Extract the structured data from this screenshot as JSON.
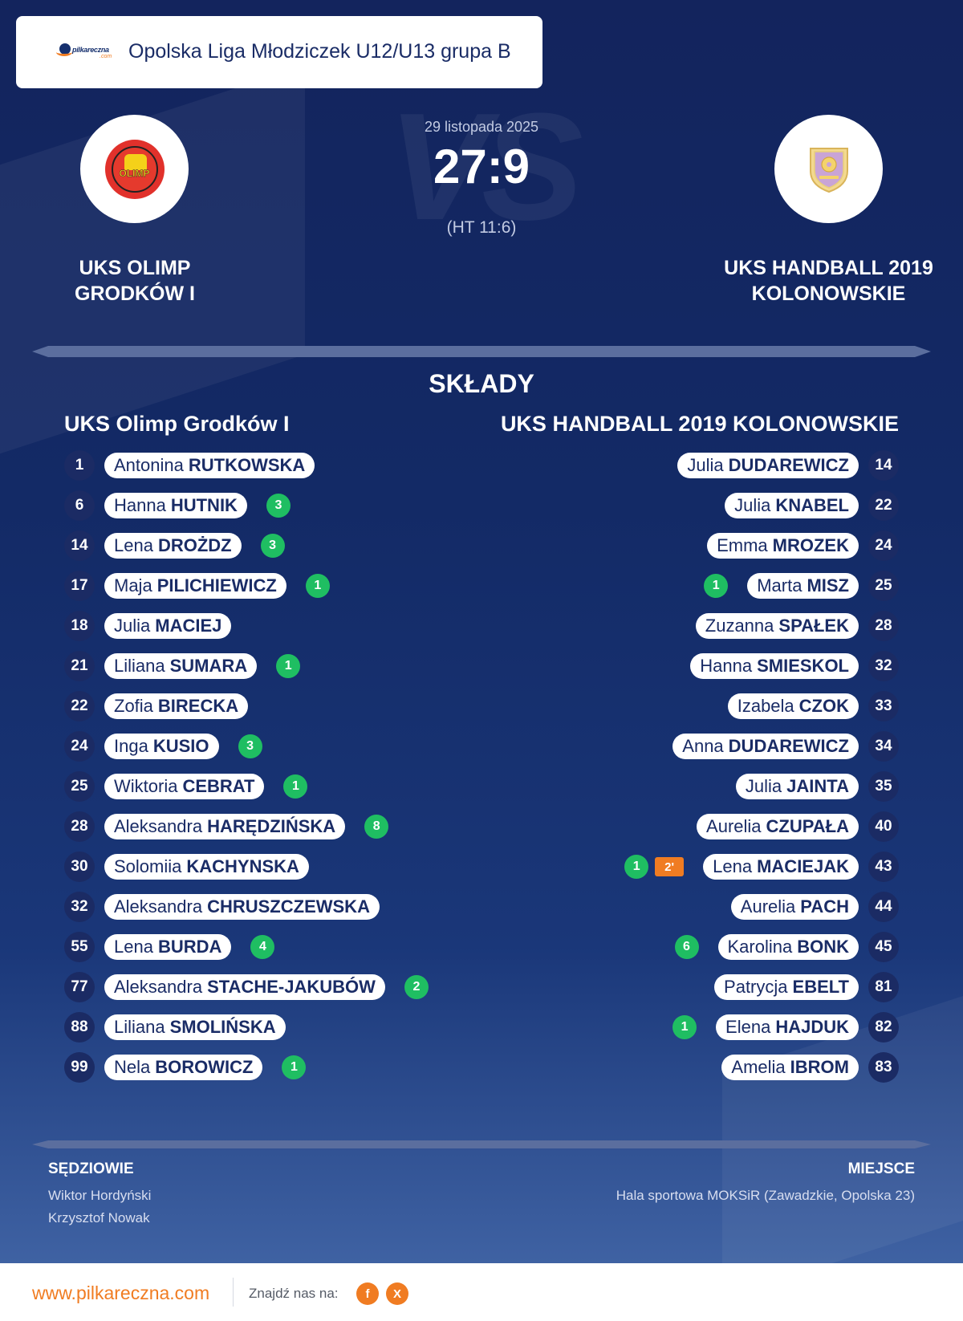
{
  "header": {
    "brand": "pilkareczna",
    "brand_suffix": ".com",
    "league": "Opolska Liga Młodziczek U12/U13 grupa B"
  },
  "match": {
    "date": "29 listopada 2025",
    "score": "27:9",
    "halftime": "(HT 11:6)",
    "vs": "VS",
    "home_name": "UKS OLIMP GRODKÓW I",
    "away_name": "UKS HANDBALL 2019 KOLONOWSKIE",
    "home_logo_text": "OLIMP"
  },
  "lineups": {
    "title": "SKŁADY",
    "home_title": "UKS Olimp Grodków I",
    "away_title": "UKS HANDBALL 2019 KOLONOWSKIE",
    "home": [
      {
        "num": "1",
        "first": "Antonina",
        "last": "RUTKOWSKA",
        "goals": ""
      },
      {
        "num": "6",
        "first": "Hanna",
        "last": "HUTNIK",
        "goals": "3"
      },
      {
        "num": "14",
        "first": "Lena",
        "last": "DROŻDZ",
        "goals": "3"
      },
      {
        "num": "17",
        "first": "Maja",
        "last": "PILICHIEWICZ",
        "goals": "1"
      },
      {
        "num": "18",
        "first": "Julia",
        "last": "MACIEJ",
        "goals": ""
      },
      {
        "num": "21",
        "first": "Liliana",
        "last": "SUMARA",
        "goals": "1"
      },
      {
        "num": "22",
        "first": "Zofia",
        "last": "BIRECKA",
        "goals": ""
      },
      {
        "num": "24",
        "first": "Inga",
        "last": "KUSIO",
        "goals": "3"
      },
      {
        "num": "25",
        "first": "Wiktoria",
        "last": "CEBRAT",
        "goals": "1"
      },
      {
        "num": "28",
        "first": "Aleksandra",
        "last": "HARĘDZIŃSKA",
        "goals": "8"
      },
      {
        "num": "30",
        "first": "Solomiia",
        "last": "KACHYNSKA",
        "goals": ""
      },
      {
        "num": "32",
        "first": "Aleksandra",
        "last": "CHRUSZCZEWSKA",
        "goals": ""
      },
      {
        "num": "55",
        "first": "Lena",
        "last": "BURDA",
        "goals": "4"
      },
      {
        "num": "77",
        "first": "Aleksandra",
        "last": "STACHE-JAKUBÓW",
        "goals": "2"
      },
      {
        "num": "88",
        "first": "Liliana",
        "last": "SMOLIŃSKA",
        "goals": ""
      },
      {
        "num": "99",
        "first": "Nela",
        "last": "BOROWICZ",
        "goals": "1"
      }
    ],
    "away": [
      {
        "num": "14",
        "first": "Julia",
        "last": "DUDAREWICZ",
        "goals": "",
        "suspension": ""
      },
      {
        "num": "22",
        "first": "Julia",
        "last": "KNABEL",
        "goals": "",
        "suspension": ""
      },
      {
        "num": "24",
        "first": "Emma",
        "last": "MROZEK",
        "goals": "",
        "suspension": ""
      },
      {
        "num": "25",
        "first": "Marta",
        "last": "MISZ",
        "goals": "1",
        "suspension": ""
      },
      {
        "num": "28",
        "first": "Zuzanna",
        "last": "SPAŁEK",
        "goals": "",
        "suspension": ""
      },
      {
        "num": "32",
        "first": "Hanna",
        "last": "SMIESKOL",
        "goals": "",
        "suspension": ""
      },
      {
        "num": "33",
        "first": "Izabela",
        "last": "CZOK",
        "goals": "",
        "suspension": ""
      },
      {
        "num": "34",
        "first": "Anna",
        "last": "DUDAREWICZ",
        "goals": "",
        "suspension": ""
      },
      {
        "num": "35",
        "first": "Julia",
        "last": "JAINTA",
        "goals": "",
        "suspension": ""
      },
      {
        "num": "40",
        "first": "Aurelia",
        "last": "CZUPAŁA",
        "goals": "",
        "suspension": ""
      },
      {
        "num": "43",
        "first": "Lena",
        "last": "MACIEJAK",
        "goals": "1",
        "suspension": "2'"
      },
      {
        "num": "44",
        "first": "Aurelia",
        "last": "PACH",
        "goals": "",
        "suspension": ""
      },
      {
        "num": "45",
        "first": "Karolina",
        "last": "BONK",
        "goals": "6",
        "suspension": ""
      },
      {
        "num": "81",
        "first": "Patrycja",
        "last": "EBELT",
        "goals": "",
        "suspension": ""
      },
      {
        "num": "82",
        "first": "Elena",
        "last": "HAJDUK",
        "goals": "1",
        "suspension": ""
      },
      {
        "num": "83",
        "first": "Amelia",
        "last": "IBROM",
        "goals": "",
        "suspension": ""
      }
    ]
  },
  "officials": {
    "referees_label": "SĘDZIOWIE",
    "referees": [
      "Wiktor Hordyński",
      "Krzysztof Nowak"
    ],
    "venue_label": "MIEJSCE",
    "venue": "Hala sportowa MOKSiR (Zawadzkie, Opolska 23)"
  },
  "footer": {
    "url": "www.pilkareczna.com",
    "find_us": "Znajdź nas na:",
    "social": [
      {
        "icon": "facebook-icon",
        "glyph": "f"
      },
      {
        "icon": "x-icon",
        "glyph": "X"
      }
    ]
  },
  "colors": {
    "navy": "#13245d",
    "accent": "#f07c22",
    "goal_green": "#1fbe62",
    "number_bg": "#1b2b64"
  }
}
